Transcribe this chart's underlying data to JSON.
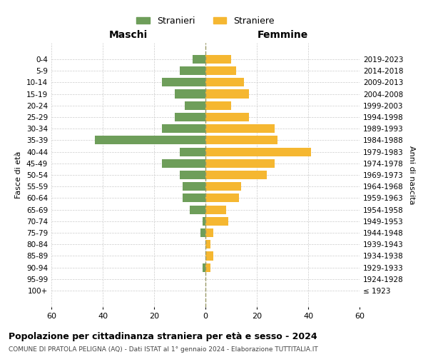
{
  "age_groups": [
    "100+",
    "95-99",
    "90-94",
    "85-89",
    "80-84",
    "75-79",
    "70-74",
    "65-69",
    "60-64",
    "55-59",
    "50-54",
    "45-49",
    "40-44",
    "35-39",
    "30-34",
    "25-29",
    "20-24",
    "15-19",
    "10-14",
    "5-9",
    "0-4"
  ],
  "birth_years": [
    "≤ 1923",
    "1924-1928",
    "1929-1933",
    "1934-1938",
    "1939-1943",
    "1944-1948",
    "1949-1953",
    "1954-1958",
    "1959-1963",
    "1964-1968",
    "1969-1973",
    "1974-1978",
    "1979-1983",
    "1984-1988",
    "1989-1993",
    "1994-1998",
    "1999-2003",
    "2004-2008",
    "2009-2013",
    "2014-2018",
    "2019-2023"
  ],
  "maschi": [
    0,
    0,
    1,
    0,
    0,
    2,
    1,
    6,
    9,
    9,
    10,
    17,
    10,
    43,
    17,
    12,
    8,
    12,
    17,
    10,
    5
  ],
  "femmine": [
    0,
    0,
    2,
    3,
    2,
    3,
    9,
    8,
    13,
    14,
    24,
    27,
    41,
    28,
    27,
    17,
    10,
    17,
    15,
    12,
    10
  ],
  "maschi_color": "#6e9e5a",
  "femmine_color": "#f5b731",
  "title": "Popolazione per cittadinanza straniera per età e sesso - 2024",
  "subtitle": "COMUNE DI PRATOLA PELIGNA (AQ) - Dati ISTAT al 1° gennaio 2024 - Elaborazione TUTTITALIA.IT",
  "xlabel_left": "Maschi",
  "xlabel_right": "Femmine",
  "ylabel_left": "Fasce di età",
  "ylabel_right": "Anni di nascita",
  "legend_maschi": "Stranieri",
  "legend_femmine": "Straniere",
  "xlim": 60,
  "background_color": "#ffffff",
  "grid_color": "#cccccc"
}
